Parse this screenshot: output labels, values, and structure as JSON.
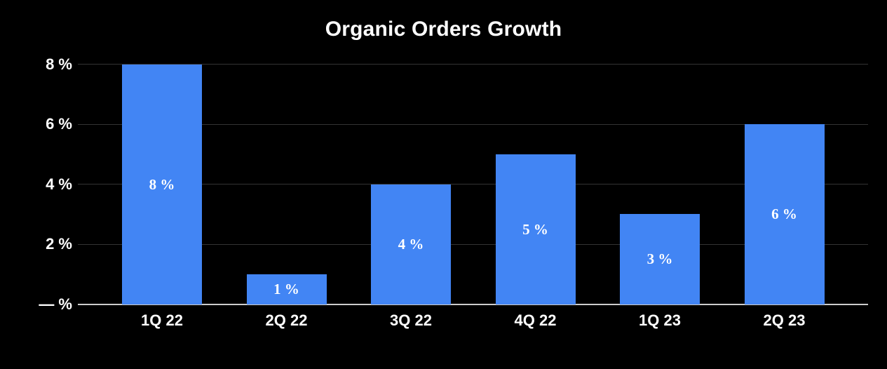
{
  "chart_data": {
    "type": "bar",
    "title": "Organic Orders Growth",
    "categories": [
      "1Q 22",
      "2Q 22",
      "3Q 22",
      "4Q 22",
      "1Q 23",
      "2Q 23"
    ],
    "values": [
      8,
      1,
      4,
      5,
      3,
      6
    ],
    "bar_labels": [
      "8 %",
      "1 %",
      "4 %",
      "5 %",
      "3 %",
      "6 %"
    ],
    "yticks": [
      {
        "value": 0,
        "label": "— %"
      },
      {
        "value": 2,
        "label": "2 %"
      },
      {
        "value": 4,
        "label": "4 %"
      },
      {
        "value": 6,
        "label": "6 %"
      },
      {
        "value": 8,
        "label": "8 %"
      }
    ],
    "ylim": [
      0,
      8
    ],
    "xlabel": "",
    "ylabel": "",
    "grid": true,
    "legend": "none",
    "colors": {
      "background": "#000000",
      "bar": "#4285F4",
      "gridline": "#333333",
      "axis_line": "#cccccc",
      "text": "#ffffff"
    }
  }
}
